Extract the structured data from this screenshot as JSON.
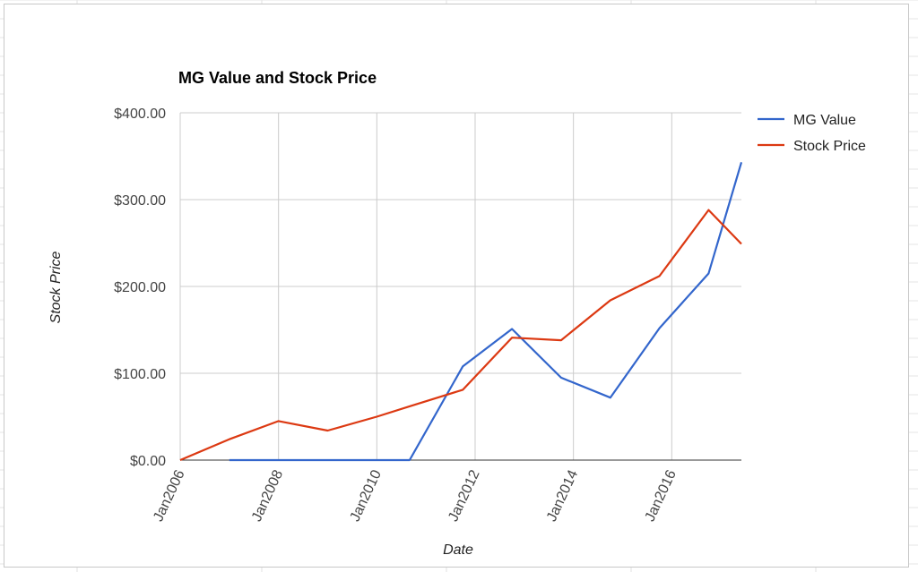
{
  "chart_data": {
    "type": "line",
    "title": "MG Value and Stock Price",
    "xlabel": "Date",
    "ylabel": "Stock Price",
    "ylim": [
      0,
      400
    ],
    "xlim": [
      "2006-01",
      "2017-06"
    ],
    "y_ticks": [
      "$0.00",
      "$100.00",
      "$200.00",
      "$300.00",
      "$400.00"
    ],
    "y_tick_values": [
      0,
      100,
      200,
      300,
      400
    ],
    "x_ticks": [
      "Jan2006",
      "Jan2008",
      "Jan2010",
      "Jan2012",
      "Jan2014",
      "Jan2016"
    ],
    "x_tick_dates": [
      "2006-01",
      "2008-01",
      "2010-01",
      "2012-01",
      "2014-01",
      "2016-01"
    ],
    "grid": true,
    "legend_position": "right",
    "series": [
      {
        "name": "MG Value",
        "color": "#3366cc",
        "points": [
          {
            "x": "2007-01",
            "y": 0
          },
          {
            "x": "2008-01",
            "y": 0
          },
          {
            "x": "2009-01",
            "y": 0
          },
          {
            "x": "2010-01",
            "y": 0
          },
          {
            "x": "2010-09",
            "y": 0
          },
          {
            "x": "2011-10",
            "y": 108
          },
          {
            "x": "2012-10",
            "y": 151
          },
          {
            "x": "2013-10",
            "y": 95
          },
          {
            "x": "2014-10",
            "y": 72
          },
          {
            "x": "2015-10",
            "y": 152
          },
          {
            "x": "2016-10",
            "y": 215
          },
          {
            "x": "2017-06",
            "y": 343
          }
        ]
      },
      {
        "name": "Stock Price",
        "color": "#dc3912",
        "points": [
          {
            "x": "2006-01",
            "y": 0
          },
          {
            "x": "2007-01",
            "y": 24
          },
          {
            "x": "2008-01",
            "y": 45
          },
          {
            "x": "2009-01",
            "y": 34
          },
          {
            "x": "2010-01",
            "y": 50
          },
          {
            "x": "2010-09",
            "y": 62
          },
          {
            "x": "2011-10",
            "y": 81
          },
          {
            "x": "2012-10",
            "y": 141
          },
          {
            "x": "2013-10",
            "y": 138
          },
          {
            "x": "2014-10",
            "y": 184
          },
          {
            "x": "2015-10",
            "y": 212
          },
          {
            "x": "2016-10",
            "y": 288
          },
          {
            "x": "2017-06",
            "y": 249
          }
        ]
      }
    ]
  }
}
